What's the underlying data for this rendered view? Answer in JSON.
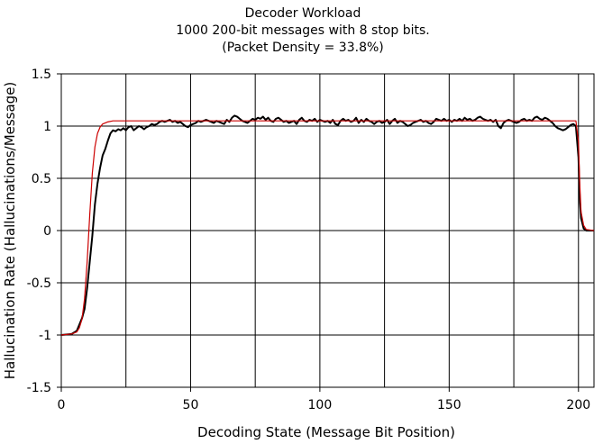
{
  "chart_data": {
    "type": "line",
    "title": [
      "Decoder Workload",
      "1000 200-bit messages with 8 stop bits.",
      "(Packet Density = 33.8%)"
    ],
    "xlabel": "Decoding State (Message Bit Position)",
    "ylabel": "Hallucination Rate (Hallucinations/Message)",
    "xlim": [
      0,
      206
    ],
    "ylim": [
      -1.5,
      1.5
    ],
    "x_ticks": [
      0,
      50,
      100,
      150,
      200
    ],
    "x_tick_labels": [
      "0",
      "50",
      "100",
      "150",
      "200"
    ],
    "y_ticks": [
      1.5,
      1,
      0.5,
      0,
      -0.5,
      -1,
      -1.5
    ],
    "y_tick_labels": [
      "1.5",
      "1",
      "0.5",
      "0",
      "-0.5",
      "-1",
      "-1.5"
    ],
    "x_gridlines": [
      25,
      50,
      75,
      100,
      125,
      150,
      175,
      200
    ],
    "y_gridlines": [
      1,
      0.5,
      0,
      -0.5,
      -1
    ],
    "grid": true,
    "legend": "none",
    "series": [
      {
        "color": "#000000",
        "points": [
          [
            0,
            -1.0
          ],
          [
            4,
            -0.99
          ],
          [
            6,
            -0.96
          ],
          [
            7,
            -0.9
          ],
          [
            8,
            -0.84
          ],
          [
            9,
            -0.75
          ],
          [
            10,
            -0.55
          ],
          [
            11,
            -0.3
          ],
          [
            12,
            -0.05
          ],
          [
            13,
            0.25
          ],
          [
            14,
            0.45
          ],
          [
            15,
            0.6
          ],
          [
            16,
            0.72
          ],
          [
            17,
            0.78
          ],
          [
            18,
            0.86
          ],
          [
            19,
            0.93
          ],
          [
            20,
            0.96
          ],
          [
            21,
            0.95
          ],
          [
            22,
            0.97
          ],
          [
            23,
            0.96
          ],
          [
            24,
            0.98
          ],
          [
            25,
            0.96
          ],
          [
            26,
            0.99
          ],
          [
            27,
            1.0
          ],
          [
            28,
            0.96
          ],
          [
            29,
            0.98
          ],
          [
            30,
            1.0
          ],
          [
            31,
            0.99
          ],
          [
            32,
            0.97
          ],
          [
            33,
            0.99
          ],
          [
            34,
            1.0
          ],
          [
            35,
            1.02
          ],
          [
            36,
            1.01
          ],
          [
            37,
            1.02
          ],
          [
            38,
            1.04
          ],
          [
            39,
            1.05
          ],
          [
            40,
            1.04
          ],
          [
            41,
            1.05
          ],
          [
            42,
            1.06
          ],
          [
            43,
            1.04
          ],
          [
            44,
            1.05
          ],
          [
            45,
            1.03
          ],
          [
            46,
            1.04
          ],
          [
            47,
            1.02
          ],
          [
            48,
            1.0
          ],
          [
            49,
            0.99
          ],
          [
            50,
            1.01
          ],
          [
            51,
            1.02
          ],
          [
            52,
            1.03
          ],
          [
            53,
            1.05
          ],
          [
            54,
            1.04
          ],
          [
            55,
            1.05
          ],
          [
            56,
            1.06
          ],
          [
            57,
            1.05
          ],
          [
            58,
            1.04
          ],
          [
            59,
            1.03
          ],
          [
            60,
            1.05
          ],
          [
            61,
            1.04
          ],
          [
            62,
            1.03
          ],
          [
            63,
            1.02
          ],
          [
            64,
            1.06
          ],
          [
            65,
            1.04
          ],
          [
            66,
            1.08
          ],
          [
            67,
            1.1
          ],
          [
            68,
            1.09
          ],
          [
            69,
            1.07
          ],
          [
            70,
            1.05
          ],
          [
            71,
            1.04
          ],
          [
            72,
            1.03
          ],
          [
            73,
            1.05
          ],
          [
            74,
            1.07
          ],
          [
            75,
            1.06
          ],
          [
            76,
            1.08
          ],
          [
            77,
            1.07
          ],
          [
            78,
            1.09
          ],
          [
            79,
            1.06
          ],
          [
            80,
            1.08
          ],
          [
            81,
            1.05
          ],
          [
            82,
            1.04
          ],
          [
            83,
            1.07
          ],
          [
            84,
            1.08
          ],
          [
            85,
            1.06
          ],
          [
            86,
            1.04
          ],
          [
            87,
            1.05
          ],
          [
            88,
            1.03
          ],
          [
            89,
            1.04
          ],
          [
            90,
            1.05
          ],
          [
            91,
            1.02
          ],
          [
            92,
            1.06
          ],
          [
            93,
            1.08
          ],
          [
            94,
            1.05
          ],
          [
            95,
            1.04
          ],
          [
            96,
            1.06
          ],
          [
            97,
            1.05
          ],
          [
            98,
            1.07
          ],
          [
            99,
            1.04
          ],
          [
            100,
            1.06
          ],
          [
            101,
            1.05
          ],
          [
            102,
            1.04
          ],
          [
            103,
            1.05
          ],
          [
            104,
            1.03
          ],
          [
            105,
            1.06
          ],
          [
            106,
            1.02
          ],
          [
            107,
            1.01
          ],
          [
            108,
            1.05
          ],
          [
            109,
            1.07
          ],
          [
            110,
            1.05
          ],
          [
            111,
            1.06
          ],
          [
            112,
            1.04
          ],
          [
            113,
            1.05
          ],
          [
            114,
            1.08
          ],
          [
            115,
            1.03
          ],
          [
            116,
            1.06
          ],
          [
            117,
            1.04
          ],
          [
            118,
            1.07
          ],
          [
            119,
            1.05
          ],
          [
            120,
            1.04
          ],
          [
            121,
            1.02
          ],
          [
            122,
            1.04
          ],
          [
            123,
            1.05
          ],
          [
            124,
            1.03
          ],
          [
            125,
            1.04
          ],
          [
            126,
            1.06
          ],
          [
            127,
            1.02
          ],
          [
            128,
            1.05
          ],
          [
            129,
            1.07
          ],
          [
            130,
            1.03
          ],
          [
            131,
            1.05
          ],
          [
            132,
            1.04
          ],
          [
            133,
            1.02
          ],
          [
            134,
            1.0
          ],
          [
            135,
            1.01
          ],
          [
            136,
            1.03
          ],
          [
            137,
            1.04
          ],
          [
            138,
            1.05
          ],
          [
            139,
            1.06
          ],
          [
            140,
            1.04
          ],
          [
            141,
            1.05
          ],
          [
            142,
            1.03
          ],
          [
            143,
            1.02
          ],
          [
            144,
            1.04
          ],
          [
            145,
            1.07
          ],
          [
            146,
            1.06
          ],
          [
            147,
            1.05
          ],
          [
            148,
            1.07
          ],
          [
            149,
            1.05
          ],
          [
            150,
            1.06
          ],
          [
            151,
            1.04
          ],
          [
            152,
            1.06
          ],
          [
            153,
            1.05
          ],
          [
            154,
            1.07
          ],
          [
            155,
            1.05
          ],
          [
            156,
            1.08
          ],
          [
            157,
            1.06
          ],
          [
            158,
            1.07
          ],
          [
            159,
            1.05
          ],
          [
            160,
            1.06
          ],
          [
            161,
            1.08
          ],
          [
            162,
            1.09
          ],
          [
            163,
            1.07
          ],
          [
            164,
            1.06
          ],
          [
            165,
            1.05
          ],
          [
            166,
            1.06
          ],
          [
            167,
            1.04
          ],
          [
            168,
            1.06
          ],
          [
            169,
            1.0
          ],
          [
            170,
            0.98
          ],
          [
            171,
            1.03
          ],
          [
            172,
            1.05
          ],
          [
            173,
            1.06
          ],
          [
            174,
            1.05
          ],
          [
            175,
            1.04
          ],
          [
            176,
            1.03
          ],
          [
            177,
            1.04
          ],
          [
            178,
            1.06
          ],
          [
            179,
            1.07
          ],
          [
            180,
            1.05
          ],
          [
            181,
            1.06
          ],
          [
            182,
            1.05
          ],
          [
            183,
            1.08
          ],
          [
            184,
            1.09
          ],
          [
            185,
            1.07
          ],
          [
            186,
            1.06
          ],
          [
            187,
            1.08
          ],
          [
            188,
            1.07
          ],
          [
            189,
            1.05
          ],
          [
            190,
            1.03
          ],
          [
            191,
            1.0
          ],
          [
            192,
            0.98
          ],
          [
            193,
            0.97
          ],
          [
            194,
            0.96
          ],
          [
            195,
            0.97
          ],
          [
            196,
            0.99
          ],
          [
            197,
            1.01
          ],
          [
            198,
            1.02
          ],
          [
            199,
            1.0
          ],
          [
            200,
            0.7
          ],
          [
            200.5,
            0.3
          ],
          [
            201,
            0.12
          ],
          [
            202,
            0.02
          ],
          [
            203,
            0.0
          ],
          [
            206,
            0.0
          ]
        ]
      },
      {
        "color": "#cc0000",
        "points": [
          [
            0,
            -1.0
          ],
          [
            4,
            -0.99
          ],
          [
            6,
            -0.97
          ],
          [
            7,
            -0.93
          ],
          [
            8,
            -0.85
          ],
          [
            9,
            -0.65
          ],
          [
            10,
            -0.3
          ],
          [
            11,
            0.15
          ],
          [
            12,
            0.55
          ],
          [
            13,
            0.8
          ],
          [
            14,
            0.93
          ],
          [
            15,
            0.99
          ],
          [
            16,
            1.02
          ],
          [
            18,
            1.04
          ],
          [
            20,
            1.05
          ],
          [
            30,
            1.05
          ],
          [
            100,
            1.05
          ],
          [
            190,
            1.05
          ],
          [
            199,
            1.05
          ],
          [
            200,
            0.85
          ],
          [
            200.5,
            0.45
          ],
          [
            201,
            0.18
          ],
          [
            202,
            0.05
          ],
          [
            203,
            0.01
          ],
          [
            206,
            0.0
          ]
        ]
      }
    ]
  }
}
